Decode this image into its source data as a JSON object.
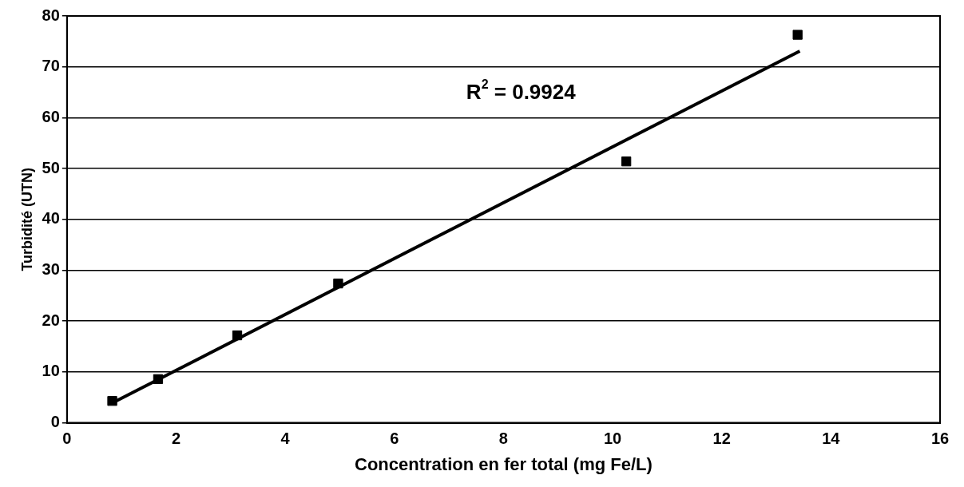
{
  "chart_data": {
    "type": "scatter",
    "xlabel": "Concentration en fer total (mg Fe/L)",
    "ylabel": "Turbidité (UTN)",
    "xlim": [
      0,
      16
    ],
    "xticks": [
      0,
      2,
      4,
      6,
      8,
      10,
      12,
      14,
      16
    ],
    "ylim": [
      0,
      80
    ],
    "yticks": [
      0,
      10,
      20,
      30,
      40,
      50,
      60,
      70,
      80
    ],
    "grid": "y",
    "legend": false,
    "series": [
      {
        "marker": "square",
        "color": "#000000",
        "x": [
          0.83,
          1.67,
          3.12,
          4.97,
          10.25,
          13.39
        ],
        "values": [
          4.3,
          8.6,
          17.2,
          27.4,
          51.4,
          76.3
        ]
      },
      {
        "type": "line",
        "marker": "none",
        "color": "#000000",
        "x": [
          0.83,
          13.43
        ],
        "values": [
          3.9,
          73.1
        ]
      }
    ],
    "annotations": [
      "R$^{2}$ = 0.9924"
    ]
  }
}
